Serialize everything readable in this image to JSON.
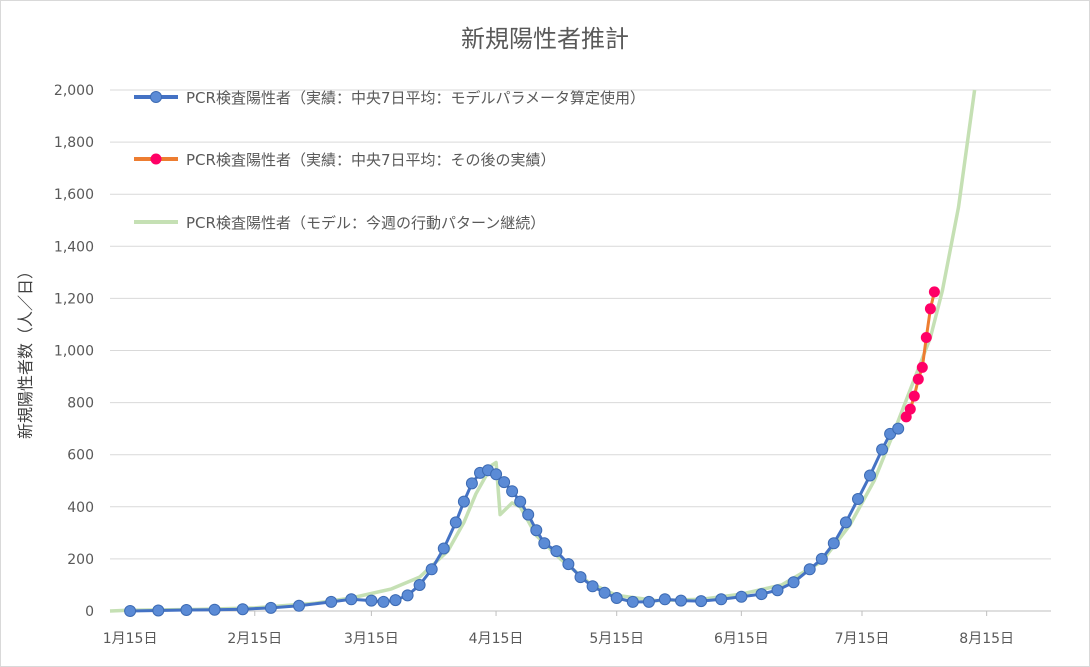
{
  "chart_data": {
    "type": "line",
    "title": "新規陽性者推計",
    "ylabel": "新規陽性者数（人／日）",
    "xlabel": "",
    "x_axis": {
      "type": "date",
      "start": "01-10",
      "end": "08-31",
      "ticks": [
        {
          "date": "01-15",
          "label": "1月15日"
        },
        {
          "date": "02-15",
          "label": "2月15日"
        },
        {
          "date": "03-15",
          "label": "3月15日"
        },
        {
          "date": "04-15",
          "label": "4月15日"
        },
        {
          "date": "05-15",
          "label": "5月15日"
        },
        {
          "date": "06-15",
          "label": "6月15日"
        },
        {
          "date": "07-15",
          "label": "7月15日"
        },
        {
          "date": "08-15",
          "label": "8月15日"
        }
      ]
    },
    "y_axis": {
      "ylim": [
        0,
        2000
      ],
      "ticks": [
        {
          "value": 0,
          "label": "0"
        },
        {
          "value": 200,
          "label": "200"
        },
        {
          "value": 400,
          "label": "400"
        },
        {
          "value": 600,
          "label": "600"
        },
        {
          "value": 800,
          "label": "800"
        },
        {
          "value": 1000,
          "label": "1,000"
        },
        {
          "value": 1200,
          "label": "1,200"
        },
        {
          "value": 1400,
          "label": "1,400"
        },
        {
          "value": 1600,
          "label": "1,600"
        },
        {
          "value": 1800,
          "label": "1,800"
        },
        {
          "value": 2000,
          "label": "2,000"
        }
      ]
    },
    "grid": "horizontal",
    "legend_position": "top-left",
    "series": [
      {
        "name": "PCR検査陽性者（実績：中央7日平均：モデルパラメータ算定使用）",
        "color": "#4472C4",
        "marker_color": "#5B8BD6",
        "marker": "circle",
        "points": [
          [
            "01-15",
            0
          ],
          [
            "01-22",
            2
          ],
          [
            "01-29",
            4
          ],
          [
            "02-05",
            5
          ],
          [
            "02-12",
            7
          ],
          [
            "02-19",
            12
          ],
          [
            "02-26",
            20
          ],
          [
            "03-05",
            35
          ],
          [
            "03-10",
            45
          ],
          [
            "03-15",
            40
          ],
          [
            "03-18",
            35
          ],
          [
            "03-21",
            42
          ],
          [
            "03-24",
            60
          ],
          [
            "03-27",
            100
          ],
          [
            "03-30",
            160
          ],
          [
            "04-02",
            240
          ],
          [
            "04-05",
            340
          ],
          [
            "04-07",
            420
          ],
          [
            "04-09",
            490
          ],
          [
            "04-11",
            530
          ],
          [
            "04-13",
            540
          ],
          [
            "04-15",
            525
          ],
          [
            "04-17",
            495
          ],
          [
            "04-19",
            460
          ],
          [
            "04-21",
            420
          ],
          [
            "04-23",
            370
          ],
          [
            "04-25",
            310
          ],
          [
            "04-27",
            260
          ],
          [
            "04-30",
            230
          ],
          [
            "05-03",
            180
          ],
          [
            "05-06",
            130
          ],
          [
            "05-09",
            95
          ],
          [
            "05-12",
            70
          ],
          [
            "05-15",
            50
          ],
          [
            "05-19",
            35
          ],
          [
            "05-23",
            35
          ],
          [
            "05-27",
            45
          ],
          [
            "05-31",
            40
          ],
          [
            "06-05",
            38
          ],
          [
            "06-10",
            45
          ],
          [
            "06-15",
            55
          ],
          [
            "06-20",
            65
          ],
          [
            "06-24",
            80
          ],
          [
            "06-28",
            110
          ],
          [
            "07-02",
            160
          ],
          [
            "07-05",
            200
          ],
          [
            "07-08",
            260
          ],
          [
            "07-11",
            340
          ],
          [
            "07-14",
            430
          ],
          [
            "07-17",
            520
          ],
          [
            "07-20",
            620
          ],
          [
            "07-22",
            680
          ],
          [
            "07-24",
            700
          ]
        ]
      },
      {
        "name": "PCR検査陽性者（実績：中央7日平均：その後の実績）",
        "color": "#ED7D31",
        "marker_color": "#FF0066",
        "marker": "circle",
        "points": [
          [
            "07-26",
            745
          ],
          [
            "07-27",
            775
          ],
          [
            "07-28",
            825
          ],
          [
            "07-29",
            890
          ],
          [
            "07-30",
            935
          ],
          [
            "07-31",
            1050
          ],
          [
            "08-01",
            1160
          ],
          [
            "08-02",
            1225
          ]
        ]
      },
      {
        "name": "PCR検査陽性者（モデル：今週の行動パターン継続）",
        "color": "#C5E0B4",
        "marker": "none",
        "points": [
          [
            "01-10",
            0
          ],
          [
            "01-15",
            3
          ],
          [
            "02-01",
            6
          ],
          [
            "02-15",
            12
          ],
          [
            "03-01",
            30
          ],
          [
            "03-10",
            50
          ],
          [
            "03-20",
            85
          ],
          [
            "03-27",
            130
          ],
          [
            "04-03",
            230
          ],
          [
            "04-07",
            340
          ],
          [
            "04-10",
            450
          ],
          [
            "04-14",
            560
          ],
          [
            "04-15",
            570
          ],
          [
            "04-16",
            370
          ],
          [
            "04-19",
            415
          ],
          [
            "04-21",
            400
          ],
          [
            "04-25",
            290
          ],
          [
            "05-01",
            200
          ],
          [
            "05-08",
            110
          ],
          [
            "05-15",
            60
          ],
          [
            "05-25",
            40
          ],
          [
            "06-05",
            45
          ],
          [
            "06-15",
            65
          ],
          [
            "06-25",
            100
          ],
          [
            "07-05",
            190
          ],
          [
            "07-12",
            330
          ],
          [
            "07-18",
            500
          ],
          [
            "07-23",
            690
          ],
          [
            "07-28",
            890
          ],
          [
            "08-01",
            1050
          ],
          [
            "08-04",
            1230
          ],
          [
            "08-08",
            1550
          ],
          [
            "08-12",
            2000
          ]
        ]
      }
    ]
  }
}
